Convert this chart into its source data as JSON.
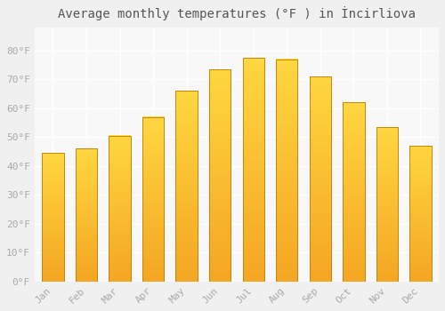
{
  "title": "Average monthly temperatures (°F ) in İncirliova",
  "months": [
    "Jan",
    "Feb",
    "Mar",
    "Apr",
    "May",
    "Jun",
    "Jul",
    "Aug",
    "Sep",
    "Oct",
    "Nov",
    "Dec"
  ],
  "values": [
    44.5,
    46.0,
    50.5,
    57.0,
    66.0,
    73.5,
    77.5,
    77.0,
    71.0,
    62.0,
    53.5,
    47.0
  ],
  "bar_color_bottom": "#F5A623",
  "bar_color_top": "#FFD740",
  "bar_outline_color": "#C8860A",
  "ylim": [
    0,
    88
  ],
  "yticks": [
    0,
    10,
    20,
    30,
    40,
    50,
    60,
    70,
    80
  ],
  "ytick_labels": [
    "0°F",
    "10°F",
    "20°F",
    "30°F",
    "40°F",
    "50°F",
    "60°F",
    "70°F",
    "80°F"
  ],
  "background_color": "#f0f0f0",
  "plot_bg_color": "#f8f8f8",
  "grid_color": "#ffffff",
  "title_fontsize": 10,
  "tick_fontsize": 8,
  "tick_color": "#aaaaaa"
}
